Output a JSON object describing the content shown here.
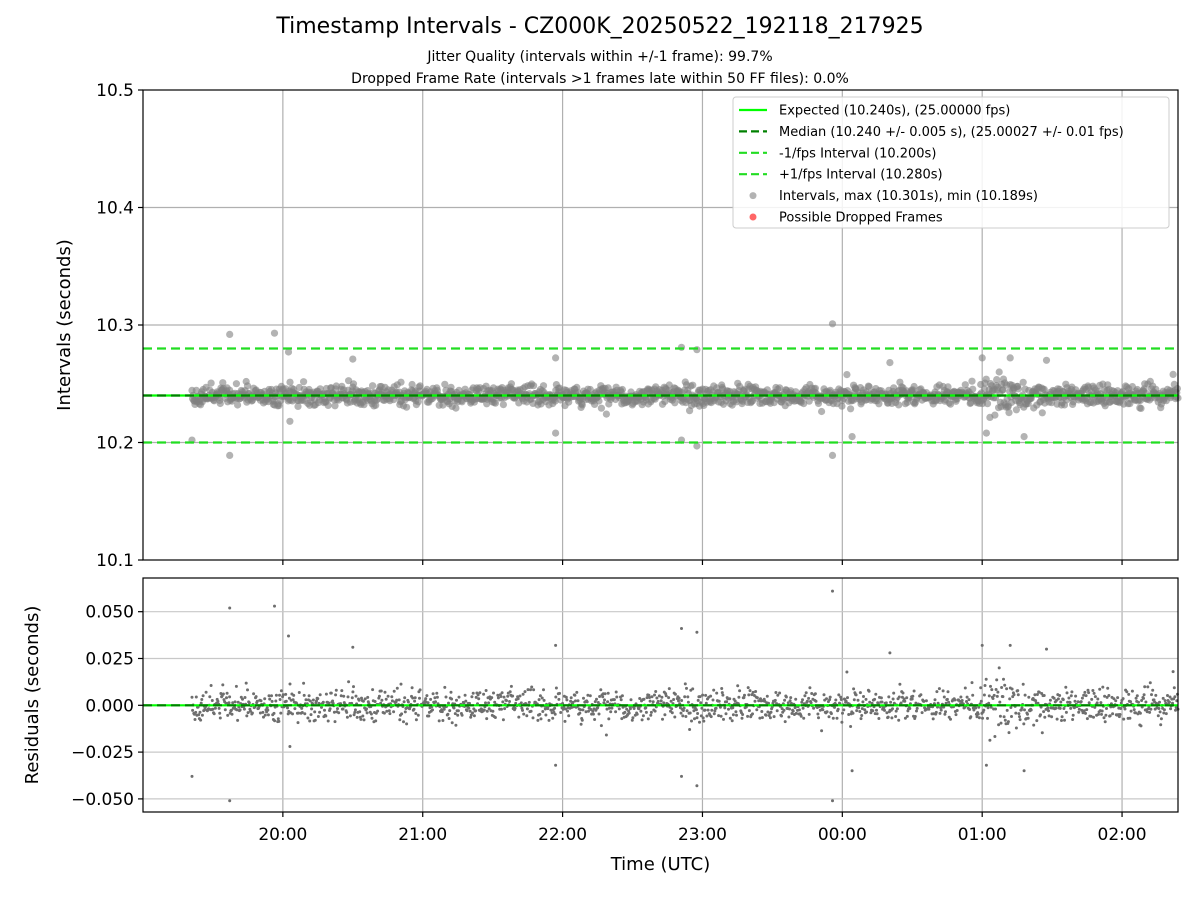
{
  "chart_data": {
    "type": "scatter",
    "title": "Timestamp Intervals - CZ000K_20250522_192118_217925",
    "subtitle_lines": [
      "Jitter Quality (intervals within +/-1 frame): 99.7%",
      "Dropped Frame Rate (intervals >1 frames late within 50 FF files): 0.0%"
    ],
    "xlabel": "Time (UTC)",
    "x_range_hours": [
      19.0,
      26.4
    ],
    "x_ticks": [
      {
        "value": 20,
        "label": "20:00"
      },
      {
        "value": 21,
        "label": "21:00"
      },
      {
        "value": 22,
        "label": "22:00"
      },
      {
        "value": 23,
        "label": "23:00"
      },
      {
        "value": 24,
        "label": "00:00"
      },
      {
        "value": 25,
        "label": "01:00"
      },
      {
        "value": 26,
        "label": "02:00"
      }
    ],
    "grid": true,
    "panels": {
      "intervals": {
        "ylabel": "Intervals (seconds)",
        "ylim": [
          10.1,
          10.5
        ],
        "y_ticks": [
          {
            "value": 10.1,
            "label": "10.1"
          },
          {
            "value": 10.2,
            "label": "10.2"
          },
          {
            "value": 10.3,
            "label": "10.3"
          },
          {
            "value": 10.4,
            "label": "10.4"
          },
          {
            "value": 10.5,
            "label": "10.5"
          }
        ],
        "reference_lines": [
          {
            "name": "Expected (10.240s), (25.00000 fps)",
            "value": 10.24,
            "color": "#00ff00",
            "style": "solid"
          },
          {
            "name": "Median (10.240 +/- 0.005 s), (25.00027 +/- 0.01 fps)",
            "value": 10.24,
            "color": "#008000",
            "style": "dashed"
          },
          {
            "name": "-1/fps Interval (10.200s)",
            "value": 10.2,
            "color": "#22dd22",
            "style": "dashed"
          },
          {
            "name": "+1/fps Interval (10.280s)",
            "value": 10.28,
            "color": "#22dd22",
            "style": "dashed"
          }
        ],
        "scatter_series": [
          {
            "name": "Intervals, max (10.301s), min (10.189s)",
            "color": "#808080",
            "alpha": 0.6
          },
          {
            "name": "Possible Dropped Frames",
            "color": "#ff0000",
            "alpha": 0.6
          }
        ],
        "legend_position": "top-right"
      },
      "residuals": {
        "ylabel": "Residuals (seconds)",
        "ylim": [
          -0.057,
          0.068
        ],
        "y_ticks": [
          {
            "value": 0.05,
            "label": "0.050"
          },
          {
            "value": 0.025,
            "label": "0.025"
          },
          {
            "value": 0.0,
            "label": "0.000"
          },
          {
            "value": -0.025,
            "label": "−0.025"
          },
          {
            "value": -0.05,
            "label": "−0.050"
          }
        ]
      }
    },
    "series_summary": {
      "count": 1600,
      "t_start_hours": 19.35,
      "t_end_hours": 26.4,
      "median": 10.24,
      "std": 0.005,
      "max": 10.301,
      "min": 10.189
    },
    "outliers": [
      {
        "t": 19.35,
        "v": 10.202
      },
      {
        "t": 19.62,
        "v": 10.292
      },
      {
        "t": 19.62,
        "v": 10.189
      },
      {
        "t": 19.94,
        "v": 10.293
      },
      {
        "t": 20.04,
        "v": 10.277
      },
      {
        "t": 20.05,
        "v": 10.218
      },
      {
        "t": 20.5,
        "v": 10.271
      },
      {
        "t": 21.95,
        "v": 10.272
      },
      {
        "t": 21.95,
        "v": 10.208
      },
      {
        "t": 22.85,
        "v": 10.281
      },
      {
        "t": 22.85,
        "v": 10.202
      },
      {
        "t": 22.96,
        "v": 10.279
      },
      {
        "t": 22.96,
        "v": 10.197
      },
      {
        "t": 23.93,
        "v": 10.301
      },
      {
        "t": 23.93,
        "v": 10.189
      },
      {
        "t": 24.07,
        "v": 10.205
      },
      {
        "t": 24.34,
        "v": 10.268
      },
      {
        "t": 25.0,
        "v": 10.272
      },
      {
        "t": 25.03,
        "v": 10.208
      },
      {
        "t": 25.2,
        "v": 10.272
      },
      {
        "t": 25.3,
        "v": 10.205
      },
      {
        "t": 25.46,
        "v": 10.27
      }
    ]
  }
}
